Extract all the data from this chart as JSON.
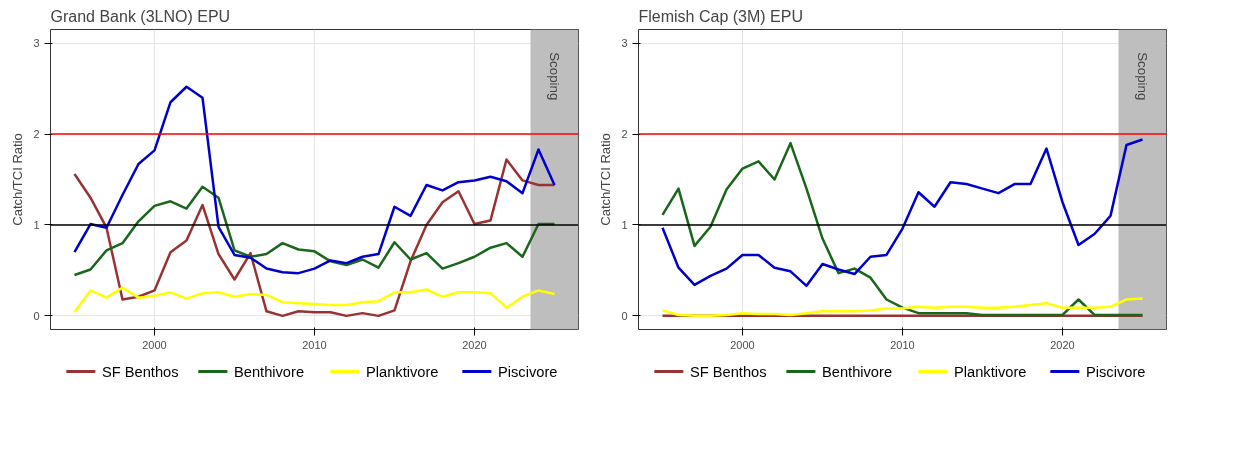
{
  "chart_data": [
    {
      "type": "line",
      "title": "Grand Bank (3LNO) EPU",
      "ylabel": "Catch/TCI Ratio",
      "x": [
        1995,
        1996,
        1997,
        1998,
        1999,
        2000,
        2001,
        2002,
        2003,
        2004,
        2005,
        2006,
        2007,
        2008,
        2009,
        2010,
        2011,
        2012,
        2013,
        2014,
        2015,
        2016,
        2017,
        2018,
        2019,
        2020,
        2021,
        2022,
        2023,
        2024,
        2025
      ],
      "series": [
        {
          "name": "SF Benthos",
          "color": "#993333",
          "values": [
            1.56,
            1.3,
            0.97,
            0.18,
            0.21,
            0.28,
            0.7,
            0.83,
            1.22,
            0.68,
            0.4,
            0.69,
            0.05,
            0.0,
            0.05,
            0.04,
            0.04,
            0.0,
            0.03,
            0.0,
            0.06,
            0.6,
            1.0,
            1.25,
            1.37,
            1.01,
            1.05,
            1.72,
            1.49,
            1.44,
            1.44
          ]
        },
        {
          "name": "Benthivore",
          "color": "#1a661a",
          "values": [
            0.45,
            0.51,
            0.72,
            0.8,
            1.04,
            1.21,
            1.26,
            1.18,
            1.42,
            1.3,
            0.72,
            0.65,
            0.68,
            0.8,
            0.73,
            0.71,
            0.6,
            0.56,
            0.62,
            0.53,
            0.81,
            0.62,
            0.69,
            0.52,
            0.58,
            0.65,
            0.75,
            0.8,
            0.65,
            1.01,
            1.01
          ]
        },
        {
          "name": "Planktivore",
          "color": "#ffff00",
          "values": [
            0.04,
            0.28,
            0.2,
            0.31,
            0.2,
            0.22,
            0.26,
            0.19,
            0.25,
            0.26,
            0.21,
            0.24,
            0.23,
            0.15,
            0.14,
            0.13,
            0.12,
            0.12,
            0.15,
            0.16,
            0.26,
            0.26,
            0.29,
            0.21,
            0.26,
            0.26,
            0.25,
            0.09,
            0.21,
            0.28,
            0.24
          ]
        },
        {
          "name": "Piscivore",
          "color": "#0000cc",
          "values": [
            0.7,
            1.01,
            0.97,
            1.33,
            1.67,
            1.82,
            2.35,
            2.52,
            2.4,
            0.98,
            0.67,
            0.64,
            0.52,
            0.48,
            0.47,
            0.52,
            0.61,
            0.58,
            0.65,
            0.68,
            1.2,
            1.1,
            1.44,
            1.38,
            1.47,
            1.49,
            1.53,
            1.48,
            1.35,
            1.83,
            1.44
          ]
        }
      ],
      "xlim": [
        1993.5,
        2026.5
      ],
      "xticks": [
        2000,
        2010,
        2020
      ],
      "ylim": [
        -0.15,
        3.15
      ],
      "yticks": [
        0,
        1,
        2,
        3
      ],
      "ref_lines": [
        {
          "axis": "y",
          "value": 2,
          "color": "#ff0000"
        },
        {
          "axis": "y",
          "value": 1,
          "color": "#000000"
        }
      ],
      "bands": [
        {
          "axis": "x",
          "from": 2023.5,
          "to": 2026.5,
          "label": "Scoping",
          "color": "#bebebe"
        }
      ],
      "grid": true,
      "legend": "bottom"
    },
    {
      "type": "line",
      "title": "Flemish Cap (3M) EPU",
      "ylabel": "Catch/TCI Ratio",
      "x": [
        1995,
        1996,
        1997,
        1998,
        1999,
        2000,
        2001,
        2002,
        2003,
        2004,
        2005,
        2006,
        2007,
        2008,
        2009,
        2010,
        2011,
        2012,
        2013,
        2014,
        2015,
        2016,
        2017,
        2018,
        2019,
        2020,
        2021,
        2022,
        2023,
        2024,
        2025
      ],
      "series": [
        {
          "name": "SF Benthos",
          "color": "#993333",
          "values": [
            0,
            0,
            0,
            0,
            0,
            0,
            0,
            0,
            0,
            0,
            0,
            0,
            0,
            0,
            0,
            0,
            0,
            0,
            0,
            0,
            0,
            0,
            0,
            0,
            0,
            0,
            0,
            0,
            0,
            0,
            0
          ]
        },
        {
          "name": "Benthivore",
          "color": "#1a661a",
          "values": [
            1.11,
            1.4,
            0.77,
            0.98,
            1.39,
            1.62,
            1.7,
            1.5,
            1.9,
            1.4,
            0.85,
            0.47,
            0.52,
            0.42,
            0.18,
            0.09,
            0.03,
            0.03,
            0.03,
            0.03,
            0.01,
            0.01,
            0.01,
            0.01,
            0.01,
            0.01,
            0.18,
            0.01,
            0.01,
            0.01,
            0.01
          ]
        },
        {
          "name": "Planktivore",
          "color": "#ffff00",
          "values": [
            0.06,
            0.01,
            0.0,
            0.0,
            0.01,
            0.03,
            0.02,
            0.02,
            0.01,
            0.03,
            0.05,
            0.05,
            0.05,
            0.06,
            0.08,
            0.08,
            0.1,
            0.09,
            0.1,
            0.1,
            0.09,
            0.09,
            0.1,
            0.12,
            0.14,
            0.09,
            0.09,
            0.09,
            0.1,
            0.18,
            0.19
          ]
        },
        {
          "name": "Piscivore",
          "color": "#0000cc",
          "values": [
            0.97,
            0.53,
            0.34,
            0.44,
            0.52,
            0.67,
            0.67,
            0.53,
            0.49,
            0.33,
            0.57,
            0.51,
            0.46,
            0.65,
            0.67,
            0.96,
            1.36,
            1.2,
            1.47,
            1.45,
            1.4,
            1.35,
            1.45,
            1.45,
            1.84,
            1.25,
            0.78,
            0.9,
            1.1,
            1.88,
            1.94
          ]
        }
      ],
      "xlim": [
        1993.5,
        2026.5
      ],
      "xticks": [
        2000,
        2010,
        2020
      ],
      "ylim": [
        -0.15,
        3.15
      ],
      "yticks": [
        0,
        1,
        2,
        3
      ],
      "ref_lines": [
        {
          "axis": "y",
          "value": 2,
          "color": "#ff0000"
        },
        {
          "axis": "y",
          "value": 1,
          "color": "#000000"
        }
      ],
      "bands": [
        {
          "axis": "x",
          "from": 2023.5,
          "to": 2026.5,
          "label": "Scoping",
          "color": "#bebebe"
        }
      ],
      "grid": true,
      "legend": "bottom"
    }
  ]
}
